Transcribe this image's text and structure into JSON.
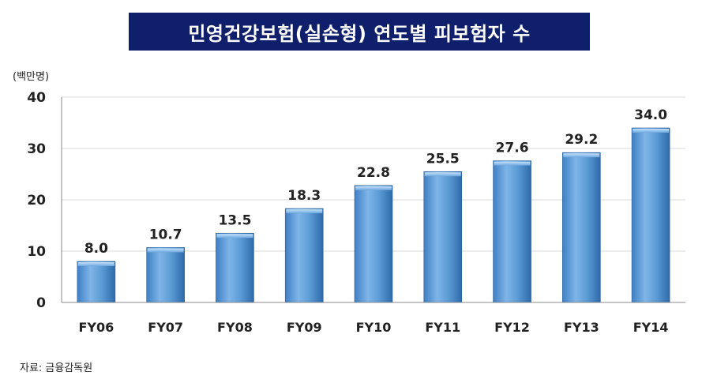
{
  "title": "민영건강보험(실손형) 연도별 피보험자 수",
  "unit_label": "(백만명)",
  "source": "자료: 금융감독원",
  "colors": {
    "title_bg": "#0f1f6b",
    "title_text": "#ffffff",
    "bar_light": "#8fc0ec",
    "bar_mid": "#5b9bd5",
    "bar_dark": "#2e6aaa",
    "bar_cap": "#a9d2f5",
    "grid": "#d9d9d9"
  },
  "chart_data": {
    "type": "bar",
    "categories": [
      "FY06",
      "FY07",
      "FY08",
      "FY09",
      "FY10",
      "FY11",
      "FY12",
      "FY13",
      "FY14"
    ],
    "values": [
      8.0,
      10.7,
      13.5,
      18.3,
      22.8,
      25.5,
      27.6,
      29.2,
      34.0
    ],
    "data_labels": [
      "8.0",
      "10.7",
      "13.5",
      "18.3",
      "22.8",
      "25.5",
      "27.6",
      "29.2",
      "34.0"
    ],
    "ylim": [
      0,
      40
    ],
    "yticks": [
      0,
      10,
      20,
      30,
      40
    ],
    "ylabel": "(백만명)",
    "xlabel": "",
    "grid": true,
    "legend": "none"
  }
}
